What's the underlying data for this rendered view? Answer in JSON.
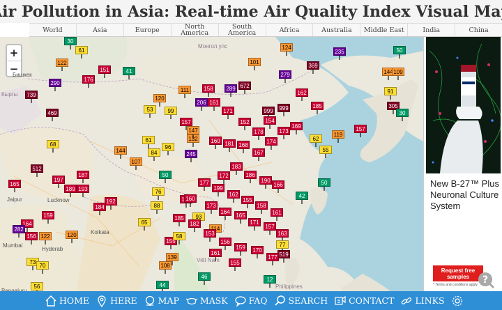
{
  "page": {
    "title": "Air Pollution in Asia: Real-time Air Quality Index Visual Map"
  },
  "regions": [
    {
      "id": "world",
      "label": "World"
    },
    {
      "id": "asia",
      "label": "Asia"
    },
    {
      "id": "europe",
      "label": "Europe"
    },
    {
      "id": "north-america",
      "label": "North\nAmerica"
    },
    {
      "id": "south-america",
      "label": "South\nAmerica"
    },
    {
      "id": "africa",
      "label": "Africa"
    },
    {
      "id": "australia",
      "label": "Australia"
    },
    {
      "id": "middle-east",
      "label": "Middle East"
    },
    {
      "id": "india",
      "label": "India"
    },
    {
      "id": "china",
      "label": "China"
    }
  ],
  "zoom": {
    "in": "+",
    "out": "−"
  },
  "aqi_colors": {
    "good": "#009966",
    "moderate": "#ffde33",
    "sensitive": "#ff9933",
    "unhealthy": "#cc0033",
    "very_unhealthy": "#660099",
    "hazardous": "#7e0023",
    "no_data": "#aaaaaa"
  },
  "map_labels": [
    {
      "text": "Монгол улс",
      "kind": "country"
    },
    {
      "text": "Бишкек",
      "kind": "city"
    },
    {
      "text": "Кыргы",
      "kind": "country"
    },
    {
      "text": "Jaipur",
      "kind": "city"
    },
    {
      "text": "Lucknow",
      "kind": "city"
    },
    {
      "text": "Kolkata",
      "kind": "city"
    },
    {
      "text": "Mumbai",
      "kind": "city"
    },
    {
      "text": "Hyderab",
      "kind": "city"
    },
    {
      "text": "Bengaluru",
      "kind": "city"
    },
    {
      "text": "Việt Nam",
      "kind": "country"
    },
    {
      "text": "Philippines",
      "kind": "country"
    }
  ],
  "stations": [
    {
      "aqi": 30,
      "level": "good"
    },
    {
      "aqi": 61,
      "level": "moderate"
    },
    {
      "aqi": 122,
      "level": "sensitive"
    },
    {
      "aqi": 176,
      "level": "unhealthy"
    },
    {
      "aqi": 151,
      "level": "unhealthy"
    },
    {
      "aqi": 41,
      "level": "good"
    },
    {
      "aqi": 290,
      "level": "very_unhealthy"
    },
    {
      "aqi": 739,
      "level": "hazardous"
    },
    {
      "aqi": 469,
      "level": "hazardous"
    },
    {
      "aqi": 68,
      "level": "moderate"
    },
    {
      "aqi": 144,
      "level": "sensitive"
    },
    {
      "aqi": 107,
      "level": "sensitive"
    },
    {
      "aqi": 512,
      "level": "hazardous"
    },
    {
      "aqi": 187,
      "level": "unhealthy"
    },
    {
      "aqi": 197,
      "level": "unhealthy"
    },
    {
      "aqi": 165,
      "level": "unhealthy"
    },
    {
      "aqi": 189,
      "level": "unhealthy"
    },
    {
      "aqi": 193,
      "level": "unhealthy"
    },
    {
      "aqi": 192,
      "level": "unhealthy"
    },
    {
      "aqi": 184,
      "level": "unhealthy"
    },
    {
      "aqi": 159,
      "level": "unhealthy"
    },
    {
      "aqi": 164,
      "level": "unhealthy"
    },
    {
      "aqi": 282,
      "level": "very_unhealthy"
    },
    {
      "aqi": 156,
      "level": "unhealthy"
    },
    {
      "aqi": 122,
      "level": "sensitive"
    },
    {
      "aqi": 120,
      "level": "sensitive"
    },
    {
      "aqi": 73,
      "level": "moderate"
    },
    {
      "aqi": 70,
      "level": "moderate"
    },
    {
      "aqi": 56,
      "level": "moderate"
    },
    {
      "aqi": 53,
      "level": "moderate"
    },
    {
      "aqi": 61,
      "level": "moderate"
    },
    {
      "aqi": 96,
      "level": "moderate"
    },
    {
      "aqi": 50,
      "level": "good"
    },
    {
      "aqi": 245,
      "level": "very_unhealthy"
    },
    {
      "aqi": 124,
      "level": "sensitive"
    },
    {
      "aqi": 101,
      "level": "sensitive"
    },
    {
      "aqi": 235,
      "level": "very_unhealthy"
    },
    {
      "aqi": 279,
      "level": "very_unhealthy"
    },
    {
      "aqi": 369,
      "level": "hazardous"
    },
    {
      "aqi": 672,
      "level": "hazardous"
    },
    {
      "aqi": 999,
      "level": "hazardous"
    },
    {
      "aqi": 999,
      "level": "hazardous"
    },
    {
      "aqi": 206,
      "level": "very_unhealthy"
    },
    {
      "aqi": 289,
      "level": "very_unhealthy"
    },
    {
      "aqi": 158,
      "level": "unhealthy"
    },
    {
      "aqi": 161,
      "level": "unhealthy"
    },
    {
      "aqi": 157,
      "level": "unhealthy"
    },
    {
      "aqi": 171,
      "level": "unhealthy"
    },
    {
      "aqi": 185,
      "level": "unhealthy"
    },
    {
      "aqi": 162,
      "level": "unhealthy"
    },
    {
      "aqi": 144,
      "level": "sensitive"
    },
    {
      "aqi": 305,
      "level": "hazardous"
    },
    {
      "aqi": 109,
      "level": "sensitive"
    },
    {
      "aqi": 50,
      "level": "good"
    },
    {
      "aqi": 30,
      "level": "good"
    },
    {
      "aqi": 91,
      "level": "moderate"
    },
    {
      "aqi": 157,
      "level": "unhealthy"
    },
    {
      "aqi": 119,
      "level": "sensitive"
    },
    {
      "aqi": 62,
      "level": "moderate"
    },
    {
      "aqi": 55,
      "level": "moderate"
    },
    {
      "aqi": 50,
      "level": "good"
    },
    {
      "aqi": 42,
      "level": "good"
    },
    {
      "aqi": 163,
      "level": "unhealthy"
    },
    {
      "aqi": 77,
      "level": "moderate"
    },
    {
      "aqi": 519,
      "level": "hazardous"
    },
    {
      "aqi": 12,
      "level": "good"
    },
    {
      "aqi": 46,
      "level": "good"
    },
    {
      "aqi": 44,
      "level": "good"
    },
    {
      "aqi": 139,
      "level": "sensitive"
    },
    {
      "aqi": 108,
      "level": "sensitive"
    },
    {
      "aqi": 93,
      "level": "moderate"
    },
    {
      "aqi": 114,
      "level": "sensitive"
    },
    {
      "aqi": 155,
      "level": "unhealthy"
    },
    {
      "aqi": 153,
      "level": "unhealthy"
    },
    {
      "aqi": 160,
      "level": "unhealthy"
    },
    {
      "aqi": 181,
      "level": "unhealthy"
    },
    {
      "aqi": 168,
      "level": "unhealthy"
    },
    {
      "aqi": 167,
      "level": "unhealthy"
    },
    {
      "aqi": 174,
      "level": "unhealthy"
    },
    {
      "aqi": 152,
      "level": "unhealthy"
    },
    {
      "aqi": 178,
      "level": "unhealthy"
    },
    {
      "aqi": 154,
      "level": "unhealthy"
    },
    {
      "aqi": 173,
      "level": "unhealthy"
    },
    {
      "aqi": 169,
      "level": "unhealthy"
    },
    {
      "aqi": 183,
      "level": "unhealthy"
    },
    {
      "aqi": 186,
      "level": "unhealthy"
    },
    {
      "aqi": 190,
      "level": "unhealthy"
    },
    {
      "aqi": 166,
      "level": "unhealthy"
    },
    {
      "aqi": 172,
      "level": "unhealthy"
    },
    {
      "aqi": 177,
      "level": "unhealthy"
    },
    {
      "aqi": 199,
      "level": "unhealthy"
    },
    {
      "aqi": 162,
      "level": "unhealthy"
    },
    {
      "aqi": 155,
      "level": "unhealthy"
    },
    {
      "aqi": 158,
      "level": "unhealthy"
    },
    {
      "aqi": 161,
      "level": "unhealthy"
    },
    {
      "aqi": 160,
      "level": "unhealthy"
    },
    {
      "aqi": 173,
      "level": "unhealthy"
    },
    {
      "aqi": 164,
      "level": "unhealthy"
    },
    {
      "aqi": 165,
      "level": "unhealthy"
    },
    {
      "aqi": 171,
      "level": "unhealthy"
    },
    {
      "aqi": 157,
      "level": "unhealthy"
    },
    {
      "aqi": 185,
      "level": "unhealthy"
    },
    {
      "aqi": 182,
      "level": "unhealthy"
    },
    {
      "aqi": 153,
      "level": "unhealthy"
    },
    {
      "aqi": 156,
      "level": "unhealthy"
    },
    {
      "aqi": 159,
      "level": "unhealthy"
    },
    {
      "aqi": 170,
      "level": "unhealthy"
    },
    {
      "aqi": 177,
      "level": "unhealthy"
    },
    {
      "aqi": 161,
      "level": "unhealthy"
    },
    {
      "aqi": 155,
      "level": "unhealthy"
    },
    {
      "aqi": 84,
      "level": "moderate"
    },
    {
      "aqi": 99,
      "level": "moderate"
    },
    {
      "aqi": 120,
      "level": "sensitive"
    },
    {
      "aqi": 111,
      "level": "sensitive"
    },
    {
      "aqi": 132,
      "level": "sensitive"
    },
    {
      "aqi": 147,
      "level": "sensitive"
    },
    {
      "aqi": 76,
      "level": "moderate"
    },
    {
      "aqi": 88,
      "level": "moderate"
    },
    {
      "aqi": 65,
      "level": "moderate"
    },
    {
      "aqi": 58,
      "level": "moderate"
    }
  ],
  "ad": {
    "text": "New B-27™ Plus Neuronal Culture System",
    "button": "Request free samples",
    "fine_print": "* Terms and conditions apply"
  },
  "help": {
    "icon": "help-icon"
  },
  "bottom_nav": [
    {
      "id": "home",
      "label": "HOME",
      "icon": "home-icon"
    },
    {
      "id": "here",
      "label": "HERE",
      "icon": "location-pin-icon"
    },
    {
      "id": "map",
      "label": "MAP",
      "icon": "globe-icon"
    },
    {
      "id": "mask",
      "label": "MASK",
      "icon": "mask-icon"
    },
    {
      "id": "faq",
      "label": "FAQ",
      "icon": "faq-bubble-icon"
    },
    {
      "id": "search",
      "label": "SEARCH",
      "icon": "search-icon"
    },
    {
      "id": "contact",
      "label": "CONTACT",
      "icon": "contact-icon"
    },
    {
      "id": "links",
      "label": "LINKS",
      "icon": "link-icon"
    },
    {
      "id": "settings",
      "label": "",
      "icon": "gear-icon"
    }
  ]
}
